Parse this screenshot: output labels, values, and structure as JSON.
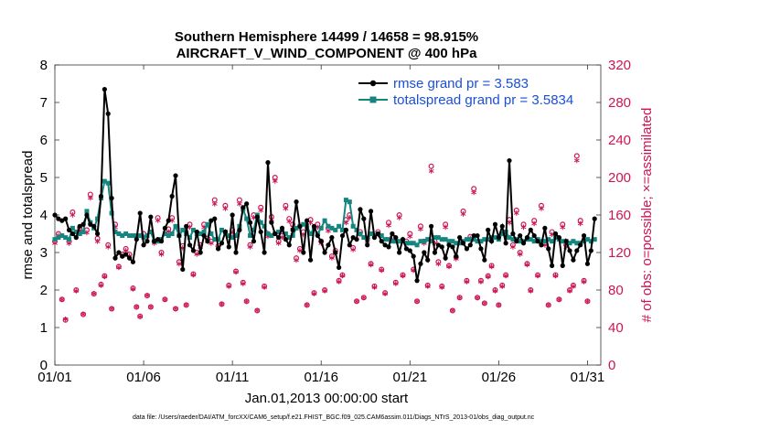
{
  "chart_data": {
    "type": "line",
    "title_line1": "Southern Hemisphere 14499 / 14658 = 98.915%",
    "title_line2": "AIRCRAFT_V_WIND_COMPONENT @ 400 hPa",
    "xlabel": "Jan.01,2013 00:00:00 start",
    "ylabel_left": "rmse and totalspread",
    "ylabel_right": "# of obs: o=possible; ×=assimilated",
    "xlim": [
      0,
      30.75
    ],
    "ylim_left": [
      0,
      8
    ],
    "ylim_right": [
      0,
      320
    ],
    "x_ticks": [
      0,
      5,
      10,
      15,
      20,
      25,
      30
    ],
    "x_tick_labels": [
      "01/01",
      "01/06",
      "01/11",
      "01/16",
      "01/21",
      "01/26",
      "01/31"
    ],
    "y_left_ticks": [
      "0",
      "1",
      "2",
      "3",
      "4",
      "5",
      "6",
      "7",
      "8"
    ],
    "y_right_ticks": [
      "0",
      "40",
      "80",
      "120",
      "160",
      "200",
      "240",
      "280",
      "320"
    ],
    "legend": [
      "rmse grand pr = 3.583",
      "totalspread grand pr = 3.5834"
    ],
    "colors": {
      "rmse": "#000000",
      "spread": "#14857f",
      "obs": "#cc1552",
      "legend_text": "#1a4fd6"
    },
    "series": [
      {
        "name": "rmse",
        "values": [
          4.0,
          3.9,
          3.85,
          3.9,
          3.6,
          3.5,
          3.4,
          3.7,
          3.75,
          4.0,
          3.75,
          3.7,
          3.5,
          4.5,
          7.35,
          6.7,
          4.45,
          2.85,
          3.0,
          2.9,
          2.95,
          2.85,
          2.75,
          3.35,
          4.05,
          3.2,
          3.3,
          3.95,
          3.3,
          3.35,
          3.3,
          3.65,
          3.85,
          4.5,
          5.05,
          3.45,
          2.55,
          3.7,
          3.2,
          3.05,
          3.55,
          3.0,
          3.45,
          3.3,
          3.85,
          3.9,
          3.1,
          3.25,
          3.55,
          3.15,
          4.0,
          3.0,
          3.6,
          4.2,
          4.3,
          3.8,
          3.3,
          3.95,
          3.55,
          3.0,
          5.4,
          3.8,
          3.5,
          3.4,
          3.65,
          3.35,
          3.2,
          3.6,
          4.35,
          3.7,
          3.0,
          3.85,
          2.8,
          3.7,
          3.45,
          3.3,
          3.0,
          3.2,
          3.4,
          3.0,
          2.6,
          3.45,
          3.6,
          3.2,
          3.4,
          3.35,
          4.15,
          3.9,
          3.2,
          4.1,
          3.4,
          3.5,
          3.3,
          3.2,
          3.15,
          3.5,
          3.4,
          3.0,
          3.35,
          3.1,
          3.05,
          2.9,
          2.25,
          2.7,
          3.0,
          2.8,
          3.7,
          3.0,
          3.2,
          3.15,
          2.85,
          3.2,
          3.15,
          2.9,
          3.4,
          3.25,
          3.1,
          3.2,
          3.45,
          3.45,
          3.1,
          2.8,
          3.6,
          3.3,
          3.75,
          3.4,
          3.7,
          3.25,
          5.45,
          3.5,
          3.3,
          3.45,
          3.25,
          3.4,
          3.6,
          3.45,
          3.3,
          3.2,
          3.65,
          3.1,
          2.65,
          3.5,
          3.4,
          2.65,
          3.3,
          3.05,
          2.8,
          3.05,
          3.2,
          3.45,
          2.7,
          3.05,
          3.9
        ]
      },
      {
        "name": "totalspread",
        "values": [
          3.35,
          3.4,
          3.45,
          3.4,
          3.35,
          3.65,
          3.55,
          3.5,
          3.55,
          4.1,
          3.8,
          3.65,
          3.9,
          4.45,
          4.9,
          4.85,
          4.05,
          3.55,
          3.5,
          3.45,
          3.5,
          3.45,
          3.45,
          3.45,
          3.45,
          3.4,
          3.45,
          3.55,
          3.3,
          3.3,
          3.35,
          3.5,
          3.45,
          3.5,
          3.7,
          3.45,
          3.6,
          3.5,
          3.4,
          3.6,
          3.5,
          3.5,
          3.55,
          3.75,
          3.5,
          3.35,
          3.35,
          3.6,
          3.55,
          3.45,
          3.4,
          3.45,
          3.7,
          4.15,
          3.9,
          3.45,
          3.6,
          4.0,
          3.8,
          3.7,
          3.5,
          3.45,
          3.5,
          3.55,
          3.6,
          3.5,
          3.4,
          3.45,
          3.65,
          3.7,
          3.75,
          3.7,
          3.5,
          3.65,
          3.5,
          3.65,
          3.85,
          3.7,
          3.65,
          3.6,
          3.7,
          3.6,
          4.4,
          4.35,
          3.7,
          3.6,
          3.5,
          3.4,
          3.35,
          3.5,
          3.45,
          3.5,
          3.45,
          3.35,
          3.35,
          3.3,
          3.3,
          3.3,
          3.3,
          3.25,
          3.25,
          3.25,
          3.2,
          3.3,
          3.3,
          3.35,
          3.3,
          3.4,
          3.4,
          3.35,
          3.35,
          3.3,
          3.3,
          3.25,
          3.25,
          3.3,
          3.35,
          3.35,
          3.35,
          3.3,
          3.3,
          3.35,
          3.35,
          3.4,
          3.4,
          3.35,
          3.5,
          3.55,
          3.4,
          3.35,
          3.35,
          3.3,
          3.3,
          3.35,
          3.35,
          3.3,
          3.35,
          3.3,
          3.3,
          3.35,
          3.3,
          3.4,
          3.35,
          3.3,
          3.3,
          3.25,
          3.3,
          3.25,
          3.25,
          3.3,
          3.35,
          3.3,
          3.35
        ]
      },
      {
        "name": "obs_possible",
        "values": [
          132,
          140,
          70,
          48,
          132,
          163,
          80,
          146,
          54,
          144,
          182,
          76,
          135,
          86,
          95,
          128,
          60,
          150,
          105,
          118,
          124,
          118,
          82,
          62,
          52,
          140,
          74,
          62,
          132,
          157,
          120,
          70,
          145,
          157,
          60,
          110,
          127,
          64,
          150,
          97,
          120,
          128,
          150,
          135,
          132,
          176,
          127,
          65,
          170,
          85,
          144,
          100,
          176,
          88,
          68,
          128,
          160,
          58,
          168,
          84,
          140,
          158,
          200,
          132,
          138,
          170,
          156,
          150,
          114,
          124,
          142,
          64,
          155,
          77,
          150,
          132,
          80,
          146,
          116,
          122,
          90,
          96,
          155,
          160,
          125,
          68,
          142,
          72,
          135,
          108,
          84,
          142,
          102,
          77,
          152,
          136,
          88,
          160,
          96,
          132,
          140,
          102,
          68,
          148,
          132,
          85,
          212,
          132,
          110,
          84,
          150,
          106,
          58,
          115,
          72,
          164,
          90,
          137,
          188,
          72,
          90,
          66,
          95,
          106,
          80,
          64,
          85,
          96,
          155,
          128,
          165,
          120,
          150,
          108,
          80,
          154,
          96,
          170,
          130,
          64,
          142,
          96,
          70,
          150,
          128,
          80,
          85,
          223,
          154,
          90,
          68
        ]
      },
      {
        "name": "obs_assimilated",
        "values": [
          128,
          136,
          68,
          47,
          128,
          158,
          77,
          141,
          52,
          139,
          176,
          74,
          130,
          83,
          92,
          124,
          58,
          145,
          102,
          114,
          120,
          114,
          79,
          60,
          50,
          135,
          72,
          60,
          128,
          152,
          116,
          68,
          140,
          152,
          58,
          106,
          123,
          62,
          145,
          94,
          116,
          124,
          145,
          130,
          128,
          170,
          123,
          63,
          165,
          82,
          139,
          97,
          170,
          85,
          66,
          124,
          155,
          56,
          163,
          81,
          135,
          153,
          194,
          128,
          134,
          165,
          151,
          145,
          110,
          120,
          137,
          62,
          150,
          74,
          145,
          128,
          77,
          141,
          112,
          118,
          87,
          93,
          150,
          155,
          121,
          66,
          137,
          70,
          130,
          105,
          81,
          137,
          99,
          74,
          147,
          131,
          85,
          155,
          93,
          128,
          135,
          99,
          66,
          143,
          128,
          82,
          205,
          128,
          106,
          81,
          145,
          103,
          56,
          111,
          70,
          159,
          87,
          133,
          182,
          70,
          87,
          64,
          92,
          103,
          77,
          62,
          82,
          93,
          150,
          124,
          160,
          116,
          145,
          105,
          77,
          149,
          93,
          165,
          126,
          62,
          137,
          93,
          68,
          145,
          124,
          77,
          82,
          216,
          149,
          87,
          66
        ]
      }
    ],
    "x_step": 0.2
  },
  "footer": "data file: /Users/raeder/DAI/ATM_forcXX/CAM6_setup/f.e21.FHIST_BGC.f09_025.CAM6assim.011/Diags_NTrS_2013-01/obs_diag_output.nc"
}
